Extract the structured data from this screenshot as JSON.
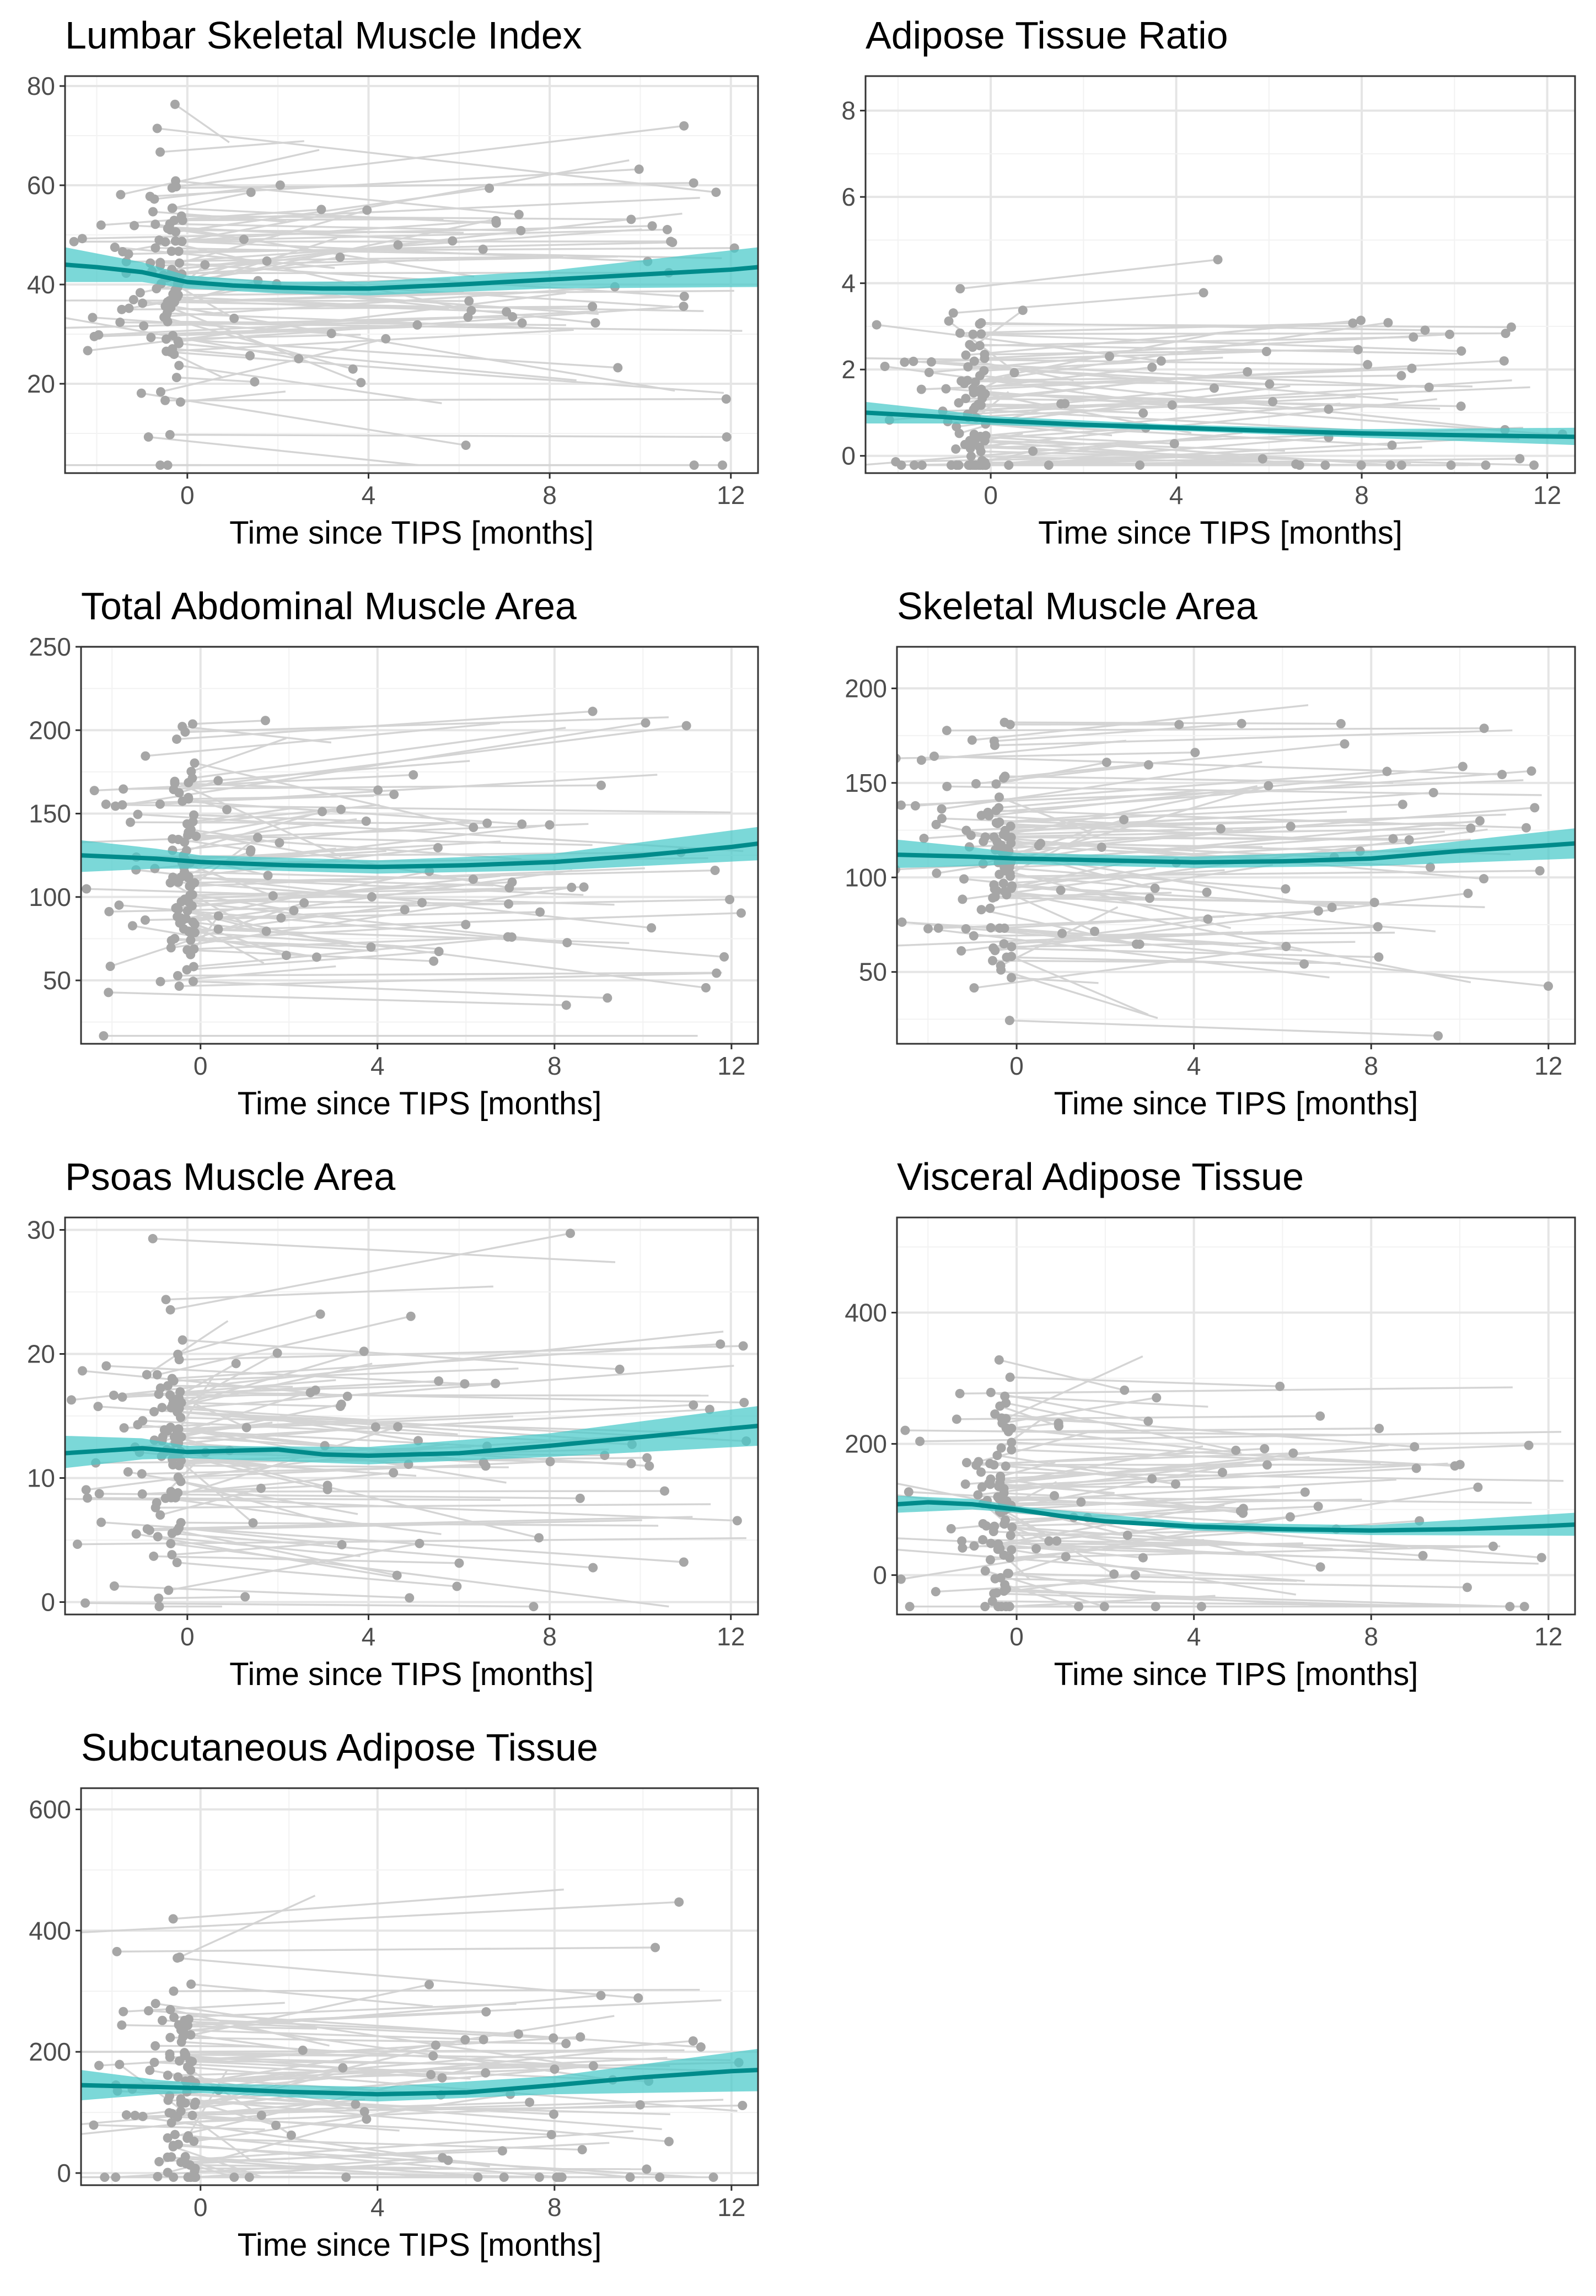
{
  "chart_data": [
    {
      "type": "line",
      "title": "Lumbar Skeletal Muscle Index",
      "xlabel": "Time since TIPS [months]",
      "ylabel": "",
      "xlim": [
        -2.7,
        12.6
      ],
      "ylim": [
        2,
        82
      ],
      "x_ticks": [
        0,
        4,
        8,
        12
      ],
      "y_ticks": [
        20,
        40,
        60,
        80
      ],
      "grid": true,
      "colors": {
        "points": "#a6a6a6",
        "lines": "#d4d4d4",
        "trend": "#008b8b",
        "band": "#48c9c9"
      },
      "series": [
        {
          "name": "Smoothed mean",
          "x": [
            -2.7,
            -2,
            -1,
            0,
            1,
            2,
            3,
            4,
            6,
            8,
            10,
            12,
            12.6
          ],
          "y": [
            44,
            43.5,
            42.5,
            40.5,
            39.8,
            39.4,
            39.2,
            39.2,
            40,
            41,
            42,
            43,
            43.5
          ]
        },
        {
          "name": "Confidence band",
          "x": [
            -2.7,
            -1,
            0,
            2,
            4,
            8,
            12.6
          ],
          "lower": [
            40.5,
            40.5,
            39.2,
            38.2,
            37.8,
            39.2,
            39.5
          ],
          "upper": [
            47.5,
            44.5,
            41.8,
            40.6,
            40.6,
            42.8,
            47.5
          ]
        },
        {
          "name": "Patients",
          "points_approx": 180
        }
      ]
    },
    {
      "type": "line",
      "title": "Adipose Tissue Ratio",
      "xlabel": "Time since TIPS [months]",
      "ylabel": "",
      "xlim": [
        -2.7,
        12.6
      ],
      "ylim": [
        -0.4,
        8.8
      ],
      "x_ticks": [
        0,
        4,
        8,
        12
      ],
      "y_ticks": [
        0,
        2,
        4,
        6,
        8
      ],
      "grid": true,
      "colors": {
        "points": "#a6a6a6",
        "lines": "#d4d4d4",
        "trend": "#008b8b",
        "band": "#48c9c9"
      },
      "series": [
        {
          "name": "Smoothed mean",
          "x": [
            -2.7,
            -1,
            0,
            2,
            4,
            6,
            8,
            10,
            12,
            12.6
          ],
          "y": [
            1.0,
            0.9,
            0.82,
            0.72,
            0.65,
            0.58,
            0.52,
            0.48,
            0.45,
            0.44
          ]
        },
        {
          "name": "Confidence band",
          "x": [
            -2.7,
            -1,
            0,
            4,
            8,
            12.6
          ],
          "lower": [
            0.75,
            0.75,
            0.72,
            0.58,
            0.42,
            0.25
          ],
          "upper": [
            1.25,
            1.05,
            0.92,
            0.72,
            0.62,
            0.65
          ]
        },
        {
          "name": "Patients",
          "points_approx": 180
        }
      ]
    },
    {
      "type": "line",
      "title": "Total Abdominal Muscle Area",
      "xlabel": "Time since TIPS [months]",
      "ylabel": "",
      "xlim": [
        -2.7,
        12.6
      ],
      "ylim": [
        12,
        250
      ],
      "x_ticks": [
        0,
        4,
        8,
        12
      ],
      "y_ticks": [
        50,
        100,
        150,
        200,
        250
      ],
      "grid": true,
      "colors": {
        "points": "#a6a6a6",
        "lines": "#d4d4d4",
        "trend": "#008b8b",
        "band": "#48c9c9"
      },
      "series": [
        {
          "name": "Smoothed mean",
          "x": [
            -2.7,
            -1,
            0,
            2,
            4,
            6,
            8,
            10,
            12,
            12.6
          ],
          "y": [
            125,
            123,
            121,
            119,
            118,
            119,
            121,
            125,
            130,
            132
          ]
        },
        {
          "name": "Confidence band",
          "x": [
            -2.7,
            -1,
            0,
            4,
            8,
            12.6
          ],
          "lower": [
            115,
            117,
            117,
            114,
            116,
            122
          ],
          "upper": [
            134,
            129,
            125,
            122,
            126,
            142
          ]
        },
        {
          "name": "Patients",
          "points_approx": 180
        }
      ]
    },
    {
      "type": "line",
      "title": "Skeletal Muscle Area",
      "xlabel": "Time since TIPS [months]",
      "ylabel": "",
      "xlim": [
        -2.7,
        12.6
      ],
      "ylim": [
        12,
        222
      ],
      "x_ticks": [
        0,
        4,
        8,
        12
      ],
      "y_ticks": [
        50,
        100,
        150,
        200
      ],
      "grid": true,
      "colors": {
        "points": "#a6a6a6",
        "lines": "#d4d4d4",
        "trend": "#008b8b",
        "band": "#48c9c9"
      },
      "series": [
        {
          "name": "Smoothed mean",
          "x": [
            -2.7,
            -1,
            0,
            2,
            4,
            6,
            8,
            10,
            12,
            12.6
          ],
          "y": [
            112,
            111,
            110,
            109,
            108,
            108.5,
            110,
            114,
            117,
            118
          ]
        },
        {
          "name": "Confidence band",
          "x": [
            -2.7,
            -1,
            0,
            4,
            8,
            12.6
          ],
          "lower": [
            105,
            106,
            107,
            105,
            106,
            110
          ],
          "upper": [
            120,
            116,
            113,
            111,
            114,
            126
          ]
        },
        {
          "name": "Patients",
          "points_approx": 180
        }
      ]
    },
    {
      "type": "line",
      "title": "Psoas Muscle Area",
      "xlabel": "Time since TIPS [months]",
      "ylabel": "",
      "xlim": [
        -2.7,
        12.6
      ],
      "ylim": [
        -1,
        31
      ],
      "x_ticks": [
        0,
        4,
        8,
        12
      ],
      "y_ticks": [
        0,
        10,
        20,
        30
      ],
      "grid": true,
      "colors": {
        "points": "#a6a6a6",
        "lines": "#d4d4d4",
        "trend": "#008b8b",
        "band": "#48c9c9"
      },
      "series": [
        {
          "name": "Smoothed mean",
          "x": [
            -2.7,
            -1,
            0,
            1,
            2,
            3,
            4,
            6,
            8,
            10,
            12,
            12.6
          ],
          "y": [
            12.0,
            12.4,
            12.1,
            12.2,
            12.3,
            11.9,
            11.8,
            12.0,
            12.6,
            13.3,
            14.0,
            14.2
          ]
        },
        {
          "name": "Confidence band",
          "x": [
            -2.7,
            -1,
            0,
            4,
            8,
            12.6
          ],
          "lower": [
            10.8,
            11.5,
            11.6,
            11.1,
            11.7,
            12.6
          ],
          "upper": [
            13.4,
            13.2,
            12.6,
            12.5,
            13.6,
            15.8
          ]
        },
        {
          "name": "Patients",
          "points_approx": 180
        }
      ]
    },
    {
      "type": "line",
      "title": "Visceral Adipose Tissue",
      "xlabel": "Time since TIPS [months]",
      "ylabel": "",
      "xlim": [
        -2.7,
        12.6
      ],
      "ylim": [
        -60,
        545
      ],
      "x_ticks": [
        0,
        4,
        8,
        12
      ],
      "y_ticks": [
        0,
        200,
        400
      ],
      "grid": true,
      "colors": {
        "points": "#a6a6a6",
        "lines": "#d4d4d4",
        "trend": "#008b8b",
        "band": "#48c9c9"
      },
      "series": [
        {
          "name": "Smoothed mean",
          "x": [
            -2.7,
            -2,
            -1,
            0,
            1,
            2,
            4,
            6,
            8,
            10,
            12,
            12.6
          ],
          "y": [
            108,
            111,
            108,
            100,
            90,
            82,
            74,
            70,
            68,
            70,
            75,
            77
          ]
        },
        {
          "name": "Confidence band",
          "x": [
            -2.7,
            -1,
            0,
            4,
            8,
            12.6
          ],
          "lower": [
            95,
            100,
            95,
            68,
            61,
            60
          ],
          "upper": [
            121,
            116,
            105,
            80,
            76,
            95
          ]
        },
        {
          "name": "Patients",
          "points_approx": 180
        }
      ]
    },
    {
      "type": "line",
      "title": "Subcutaneous Adipose Tissue",
      "xlabel": "Time since TIPS [months]",
      "ylabel": "",
      "xlim": [
        -2.7,
        12.6
      ],
      "ylim": [
        -20,
        635
      ],
      "x_ticks": [
        0,
        4,
        8,
        12
      ],
      "y_ticks": [
        0,
        200,
        400,
        600
      ],
      "grid": true,
      "colors": {
        "points": "#a6a6a6",
        "lines": "#d4d4d4",
        "trend": "#008b8b",
        "band": "#48c9c9"
      },
      "series": [
        {
          "name": "Smoothed mean",
          "x": [
            -2.7,
            -1,
            0,
            2,
            4,
            6,
            8,
            10,
            12,
            12.6
          ],
          "y": [
            145,
            142,
            140,
            134,
            130,
            133,
            145,
            158,
            168,
            170
          ]
        },
        {
          "name": "Confidence band",
          "x": [
            -2.7,
            -1,
            0,
            4,
            8,
            12.6
          ],
          "lower": [
            120,
            130,
            132,
            118,
            130,
            135
          ],
          "upper": [
            170,
            154,
            148,
            142,
            160,
            205
          ]
        },
        {
          "name": "Patients",
          "points_approx": 180
        }
      ]
    }
  ]
}
